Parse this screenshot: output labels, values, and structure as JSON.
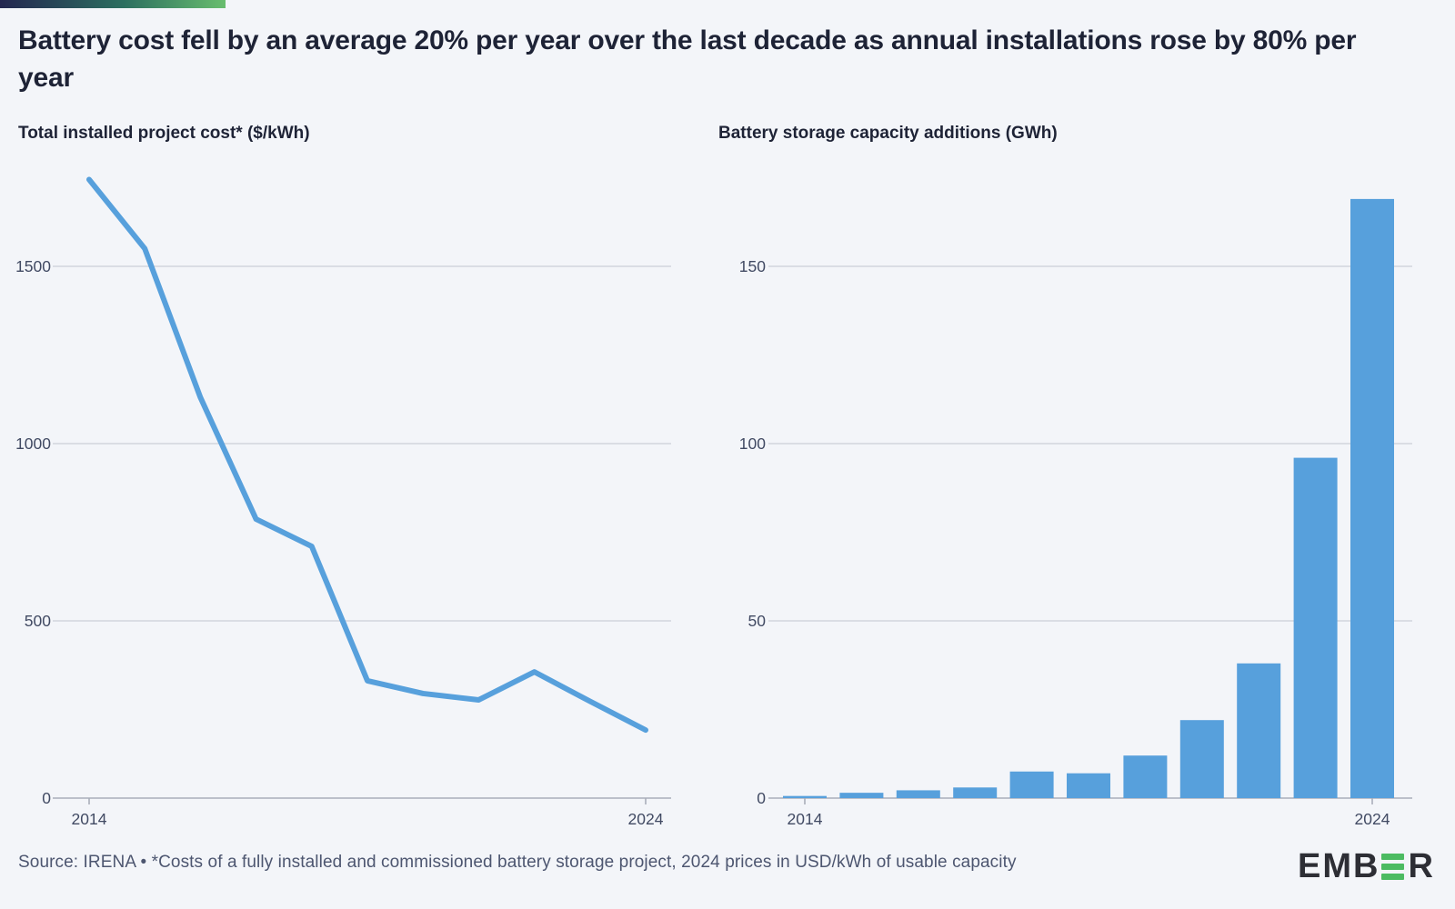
{
  "title": "Battery cost fell by an average 20% per year over the last decade as annual installations rose by 80% per year",
  "accent_bar_colors": [
    "#232650",
    "#2c6f60",
    "#68bd6e"
  ],
  "footer": "Source: IRENA • *Costs of a fully installed and commissioned battery storage project, 2024 prices in USD/kWh of usable capacity",
  "logo": {
    "part1": "EMB",
    "part2": "R",
    "green": "#4cbb62",
    "dark": "#2d2e35"
  },
  "palette": {
    "background": "#f3f5f9",
    "series_blue": "#57a0dc",
    "gridline": "#cbcfd8",
    "axis_line": "#a9aeba",
    "tick_label": "#414a63",
    "heading": "#1e2336",
    "footer_text": "#4d5670"
  },
  "chart_data": [
    {
      "type": "line",
      "title": "Total installed project cost* ($/kWh)",
      "x": [
        2014,
        2015,
        2016,
        2017,
        2018,
        2019,
        2020,
        2021,
        2022,
        2023,
        2024
      ],
      "values": [
        1745,
        1550,
        1130,
        787,
        710,
        331,
        295,
        277,
        356,
        273,
        192
      ],
      "ylabel": "$/kWh",
      "ylim": [
        0,
        1800
      ],
      "yticks": [
        0,
        500,
        1000,
        1500
      ],
      "xtick_labels": [
        "2014",
        "2024"
      ],
      "line_color": "#57a0dc",
      "grid": true,
      "legend": "none"
    },
    {
      "type": "bar",
      "title": "Battery storage capacity additions (GWh)",
      "x": [
        2014,
        2015,
        2016,
        2017,
        2018,
        2019,
        2020,
        2021,
        2022,
        2023,
        2024
      ],
      "values": [
        0.6,
        1.5,
        2.2,
        3,
        7.5,
        7,
        12,
        22,
        38,
        96,
        169
      ],
      "ylabel": "GWh",
      "ylim": [
        0,
        180
      ],
      "yticks": [
        0,
        50,
        100,
        150
      ],
      "xtick_labels": [
        "2014",
        "2024"
      ],
      "bar_color": "#57a0dc",
      "grid": true,
      "legend": "none"
    }
  ]
}
